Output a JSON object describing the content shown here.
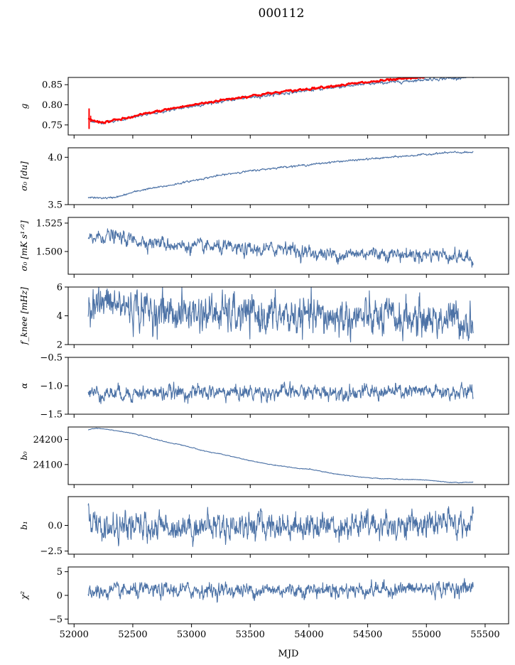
{
  "figure": {
    "title": "000112",
    "xlabel": "MJD",
    "x_ticks": [
      52000,
      52500,
      53000,
      53500,
      54000,
      54500,
      55000,
      55500
    ],
    "line_color": "#4c72a6",
    "model_color": "#ff0000"
  },
  "chart_data": [
    {
      "type": "line",
      "id": "g",
      "ylabel": "g",
      "xlim": [
        51950,
        55700
      ],
      "ylim": [
        0.725,
        0.868
      ],
      "yticks": [
        0.75,
        0.8,
        0.85
      ],
      "ytick_labels": [
        "0.75",
        "0.80",
        "0.85"
      ],
      "series": [
        {
          "style": "line",
          "x": [
            52120,
            52150,
            52200,
            52250,
            52300,
            52400,
            52500,
            52600,
            52700,
            52800,
            52900,
            53000,
            53200,
            53400,
            53600,
            53800,
            54000,
            54200,
            54400,
            54600,
            54800,
            55000,
            55200,
            55400
          ],
          "y": [
            0.765,
            0.76,
            0.757,
            0.756,
            0.758,
            0.763,
            0.769,
            0.775,
            0.78,
            0.786,
            0.791,
            0.796,
            0.806,
            0.815,
            0.822,
            0.829,
            0.836,
            0.843,
            0.849,
            0.854,
            0.858,
            0.863,
            0.866,
            0.868
          ],
          "noise": 0.0015
        },
        {
          "style": "model",
          "x": [
            52120,
            52150,
            52200,
            52250,
            52300,
            52400,
            52500,
            52600,
            52700,
            52800,
            52900,
            53000,
            53200,
            53400,
            53600,
            53800,
            54000,
            54200,
            54400,
            54600,
            54800,
            55000
          ],
          "y": [
            0.767,
            0.761,
            0.758,
            0.757,
            0.759,
            0.764,
            0.77,
            0.777,
            0.783,
            0.789,
            0.794,
            0.799,
            0.809,
            0.818,
            0.826,
            0.833,
            0.84,
            0.847,
            0.853,
            0.859,
            0.864,
            0.869
          ],
          "noise": 0.0012
        }
      ]
    },
    {
      "type": "line",
      "id": "sigma0",
      "ylabel": "σ₀ [du]",
      "xlim": [
        51950,
        55700
      ],
      "ylim": [
        3.5,
        4.1
      ],
      "yticks": [
        3.5,
        4.0
      ],
      "ytick_labels": [
        "3.5",
        "4.0"
      ],
      "series": [
        {
          "style": "line",
          "x": [
            52120,
            52200,
            52300,
            52400,
            52500,
            52600,
            52800,
            53000,
            53200,
            53400,
            53600,
            53800,
            54000,
            54200,
            54400,
            54600,
            54800,
            55000,
            55200,
            55400
          ],
          "y": [
            3.58,
            3.57,
            3.57,
            3.59,
            3.63,
            3.66,
            3.7,
            3.75,
            3.8,
            3.84,
            3.87,
            3.9,
            3.92,
            3.95,
            3.97,
            3.99,
            4.01,
            4.03,
            4.05,
            4.05
          ],
          "noise": 0.004
        }
      ]
    },
    {
      "type": "line",
      "id": "sigma0_rms",
      "ylabel": "σ₀ [mK s¹ᐟ²]",
      "xlim": [
        51950,
        55700
      ],
      "ylim": [
        1.48,
        1.53
      ],
      "yticks": [
        1.5,
        1.525
      ],
      "ytick_labels": [
        "1.500",
        "1.525"
      ],
      "series": [
        {
          "style": "line",
          "x": [
            52120,
            52200,
            52300,
            52500,
            52700,
            52900,
            53100,
            53300,
            53500,
            53700,
            53800,
            53900,
            54100,
            54300,
            54500,
            54700,
            54900,
            55100,
            55300,
            55400
          ],
          "y": [
            1.51,
            1.513,
            1.514,
            1.51,
            1.508,
            1.505,
            1.504,
            1.503,
            1.501,
            1.502,
            1.505,
            1.5,
            1.498,
            1.497,
            1.499,
            1.498,
            1.497,
            1.498,
            1.495,
            1.492
          ],
          "noise": 0.0025
        }
      ]
    },
    {
      "type": "line",
      "id": "fknee",
      "ylabel": "f_knee [mHz]",
      "xlim": [
        51950,
        55700
      ],
      "ylim": [
        2,
        6
      ],
      "yticks": [
        2,
        4,
        6
      ],
      "ytick_labels": [
        "2",
        "4",
        "6"
      ],
      "series": [
        {
          "style": "line",
          "x": [
            52120,
            52300,
            52500,
            52700,
            52900,
            53100,
            53300,
            53500,
            53700,
            53900,
            54100,
            54300,
            54500,
            54700,
            54900,
            55100,
            55300,
            55400
          ],
          "y": [
            4.9,
            4.8,
            4.6,
            4.3,
            4.2,
            4.2,
            4.1,
            4.0,
            4.0,
            3.9,
            3.9,
            3.9,
            3.8,
            3.8,
            3.8,
            3.8,
            3.7,
            3.6
          ],
          "noise": 0.55
        }
      ]
    },
    {
      "type": "line",
      "id": "alpha",
      "ylabel": "α",
      "xlim": [
        51950,
        55700
      ],
      "ylim": [
        -1.5,
        -0.5
      ],
      "yticks": [
        -1.5,
        -1.0,
        -0.5
      ],
      "ytick_labels": [
        "−1.5",
        "−1.0",
        "−0.5"
      ],
      "series": [
        {
          "style": "line",
          "x": [
            52120,
            53000,
            54000,
            55000,
            55400
          ],
          "y": [
            -1.13,
            -1.12,
            -1.11,
            -1.11,
            -1.12
          ],
          "noise": 0.055
        }
      ]
    },
    {
      "type": "line",
      "id": "b0",
      "ylabel": "b₀",
      "xlim": [
        51950,
        55700
      ],
      "ylim": [
        24020,
        24250
      ],
      "yticks": [
        24100,
        24200
      ],
      "ytick_labels": [
        "24100",
        "24200"
      ],
      "series": [
        {
          "style": "line",
          "x": [
            52120,
            52150,
            52200,
            52300,
            52400,
            52500,
            52600,
            52700,
            52800,
            52900,
            53000,
            53100,
            53200,
            53300,
            53400,
            53500,
            53600,
            53700,
            53800,
            53900,
            54000,
            54100,
            54200,
            54300,
            54400,
            54500,
            54600,
            54700,
            54800,
            54900,
            55000,
            55100,
            55200,
            55300,
            55400
          ],
          "y": [
            24238,
            24243,
            24245,
            24240,
            24232,
            24224,
            24213,
            24200,
            24188,
            24180,
            24168,
            24155,
            24146,
            24137,
            24126,
            24115,
            24106,
            24098,
            24092,
            24084,
            24082,
            24074,
            24064,
            24058,
            24052,
            24047,
            24044,
            24043,
            24040,
            24040,
            24038,
            24033,
            24028,
            24028,
            24030
          ],
          "noise": 0.6
        }
      ]
    },
    {
      "type": "line",
      "id": "b1",
      "ylabel": "b₁",
      "xlim": [
        51950,
        55700
      ],
      "ylim": [
        -2.8,
        2.8
      ],
      "yticks": [
        -2.5,
        0.0
      ],
      "ytick_labels": [
        "−2.5",
        "0.0"
      ],
      "series": [
        {
          "style": "line",
          "x": [
            52120,
            52130,
            52150,
            52180,
            52250,
            52500,
            53000,
            53500,
            54000,
            54500,
            55000,
            55400
          ],
          "y": [
            2.2,
            1.2,
            0.3,
            -0.1,
            -0.3,
            -0.2,
            -0.1,
            0.0,
            0.0,
            0.0,
            0.1,
            0.2
          ],
          "noise": 0.55
        }
      ]
    },
    {
      "type": "line",
      "id": "chi2",
      "ylabel": "χ²",
      "xlim": [
        51950,
        55700
      ],
      "ylim": [
        -6,
        6
      ],
      "yticks": [
        -5,
        0,
        5
      ],
      "ytick_labels": [
        "−5",
        "0",
        "5"
      ],
      "series": [
        {
          "style": "line",
          "x": [
            52120,
            52500,
            53000,
            53500,
            54000,
            54500,
            55000,
            55400
          ],
          "y": [
            0.6,
            0.9,
            1.1,
            1.1,
            1.2,
            1.2,
            1.4,
            1.6
          ],
          "noise": 0.65
        }
      ]
    }
  ]
}
